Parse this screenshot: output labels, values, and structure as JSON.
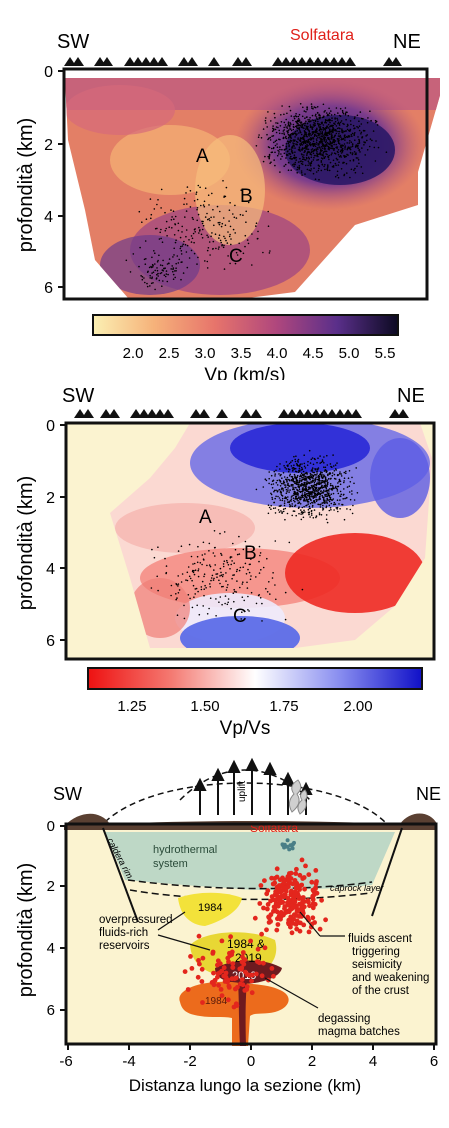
{
  "colors": {
    "label_red": "#e0201a",
    "cream": "#fbf3d0",
    "black": "#111111"
  },
  "panel1": {
    "sw": "SW",
    "ne": "NE",
    "volcano": "Solfatara",
    "ylabel": "profondità (km)",
    "yticks": [
      "0",
      "2",
      "4",
      "6"
    ],
    "labels": {
      "a": "A",
      "b": "B",
      "c": "C"
    },
    "colorbar_ticks": [
      "2.0",
      "2.5",
      "3.0",
      "3.5",
      "4.0",
      "4.5",
      "5.0",
      "5.5"
    ],
    "colorbar_label": "Vp (km/s)"
  },
  "panel2": {
    "sw": "SW",
    "ne": "NE",
    "ylabel": "profondità (km)",
    "yticks": [
      "0",
      "2",
      "4",
      "6"
    ],
    "labels": {
      "a": "A",
      "b": "B",
      "c": "C"
    },
    "colorbar_ticks": [
      "1.25",
      "1.50",
      "1.75",
      "2.00"
    ],
    "colorbar_label": "Vp/Vs"
  },
  "panel3": {
    "sw": "SW",
    "ne": "NE",
    "ylabel": "profondità (km)",
    "yticks": [
      "0",
      "2",
      "4",
      "6"
    ],
    "xticks": [
      "-6",
      "-4",
      "-2",
      "0",
      "2",
      "4",
      "6"
    ],
    "xlabel": "Distanza lungo la sezione (km)",
    "uplift": "uplift",
    "solfatara": "Solfatara",
    "caldera_rim": "caldera rim",
    "hydrothermal": [
      "hydrothermal",
      "system"
    ],
    "caprock": "caprock layer",
    "y1984a": "1984",
    "y1984_2019": [
      "1984 &",
      "2019"
    ],
    "y2019": "2019",
    "y1984b": "1984",
    "overpressured": [
      "overpressured",
      "fluids-rich",
      "reservoirs"
    ],
    "fluids_ascent": [
      "fluids ascent",
      "triggering",
      "seismicity",
      "and weakening",
      "of the crust"
    ],
    "degassing": [
      "degassing",
      "magma batches"
    ]
  }
}
